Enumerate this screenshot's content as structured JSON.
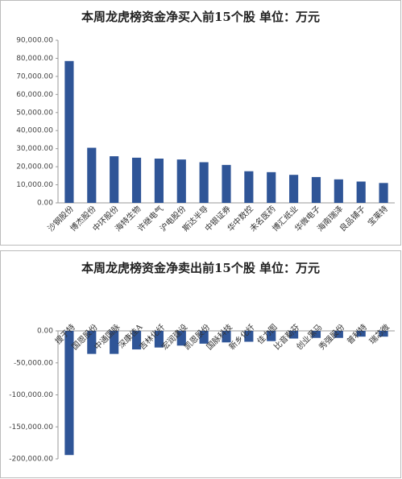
{
  "chart_data": [
    {
      "type": "bar",
      "title": "本周龙虎榜资金净买入前15个股 单位：万元",
      "categories": [
        "沙钢股份",
        "博杰股份",
        "中环股份",
        "海特生物",
        "许继电气",
        "沪电股份",
        "斯达半导",
        "中银证券",
        "华中数控",
        "未名医药",
        "博汇纸业",
        "华微电子",
        "海南瑞泽",
        "良品铺子",
        "宝莱特"
      ],
      "values": [
        78500,
        30500,
        25800,
        25000,
        24500,
        24000,
        22500,
        21000,
        17500,
        17000,
        15500,
        14300,
        13000,
        11800,
        11000
      ],
      "color": "#2f5597",
      "ylim": [
        0,
        90000
      ],
      "yticks": [
        {
          "value": 0,
          "label": "0.00"
        },
        {
          "value": 10000,
          "label": "10,000.00"
        },
        {
          "value": 20000,
          "label": "20,000.00"
        },
        {
          "value": 30000,
          "label": "30,000.00"
        },
        {
          "value": 40000,
          "label": "40,000.00"
        },
        {
          "value": 50000,
          "label": "50,000.00"
        },
        {
          "value": 60000,
          "label": "60,000.00"
        },
        {
          "value": 70000,
          "label": "70,000.00"
        },
        {
          "value": 80000,
          "label": "80,000.00"
        },
        {
          "value": 90000,
          "label": "90,000.00"
        }
      ]
    },
    {
      "type": "bar",
      "title": "本周龙虎榜资金净卖出前15个股 单位：万元",
      "categories": [
        "搜于特",
        "国恩股份",
        "中通国脉",
        "深康佳A",
        "吉林化纤",
        "宏润建设",
        "凯恩股份",
        "国脉科技",
        "新乡化纤",
        "佳力图",
        "比音勒芬",
        "创业黑马",
        "秀强股份",
        "普利特",
        "瑞芯微"
      ],
      "values": [
        -194000,
        -36000,
        -36000,
        -29000,
        -26000,
        -23000,
        -20000,
        -18000,
        -17000,
        -16000,
        -12000,
        -11000,
        -11000,
        -9000,
        -9000
      ],
      "color": "#2f5597",
      "ylim": [
        -200000,
        0
      ],
      "yticks": [
        {
          "value": -200000,
          "label": "-200,000.00"
        },
        {
          "value": -150000,
          "label": "-150,000.00"
        },
        {
          "value": -100000,
          "label": "-100,000.00"
        },
        {
          "value": -50000,
          "label": "-50,000.00"
        },
        {
          "value": 0,
          "label": "0.00"
        }
      ]
    }
  ]
}
